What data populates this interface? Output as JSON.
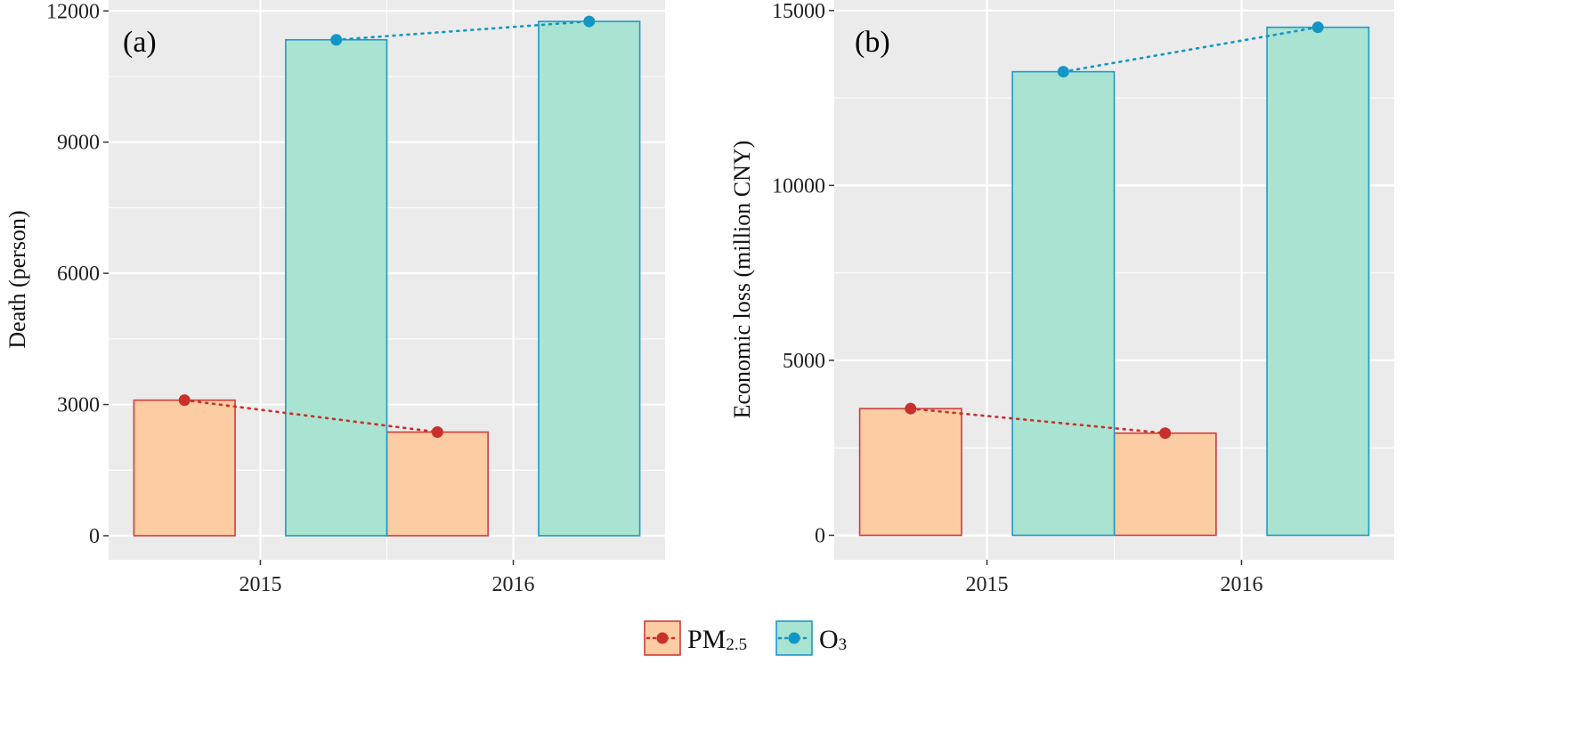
{
  "chart_data": [
    {
      "type": "bar",
      "panel_label": "(a)",
      "categories": [
        "2015",
        "2016"
      ],
      "ylabel": "Death (person)",
      "ylim": [
        -550,
        12250
      ],
      "yticks": [
        0,
        3000,
        6000,
        9000,
        12000
      ],
      "series": [
        {
          "name": "PM2.5",
          "values": [
            3100,
            2370
          ]
        },
        {
          "name": "O3",
          "values": [
            11340,
            11760
          ]
        }
      ]
    },
    {
      "type": "bar",
      "panel_label": "(b)",
      "categories": [
        "2015",
        "2016"
      ],
      "ylabel": "Economic loss (million CNY)",
      "ylim": [
        -700,
        15300
      ],
      "yticks": [
        0,
        5000,
        10000,
        15000
      ],
      "series": [
        {
          "name": "PM2.5",
          "values": [
            3620,
            2920
          ]
        },
        {
          "name": "O3",
          "values": [
            13250,
            14520
          ]
        }
      ]
    }
  ],
  "legend": {
    "position": "bottom",
    "items": [
      {
        "main": "PM",
        "sub": "2.5"
      },
      {
        "main": "O",
        "sub": "3"
      }
    ]
  },
  "style": {
    "panel_bg": "#EBEBEB",
    "grid_color": "#FFFFFF",
    "series_fill": [
      "#FCCDA3",
      "#A9E3D1"
    ],
    "series_stroke": [
      "#D03B3B",
      "#1F98C8"
    ],
    "series_marker": [
      "#C9302C",
      "#1396C6"
    ],
    "series_line": "dotted"
  }
}
